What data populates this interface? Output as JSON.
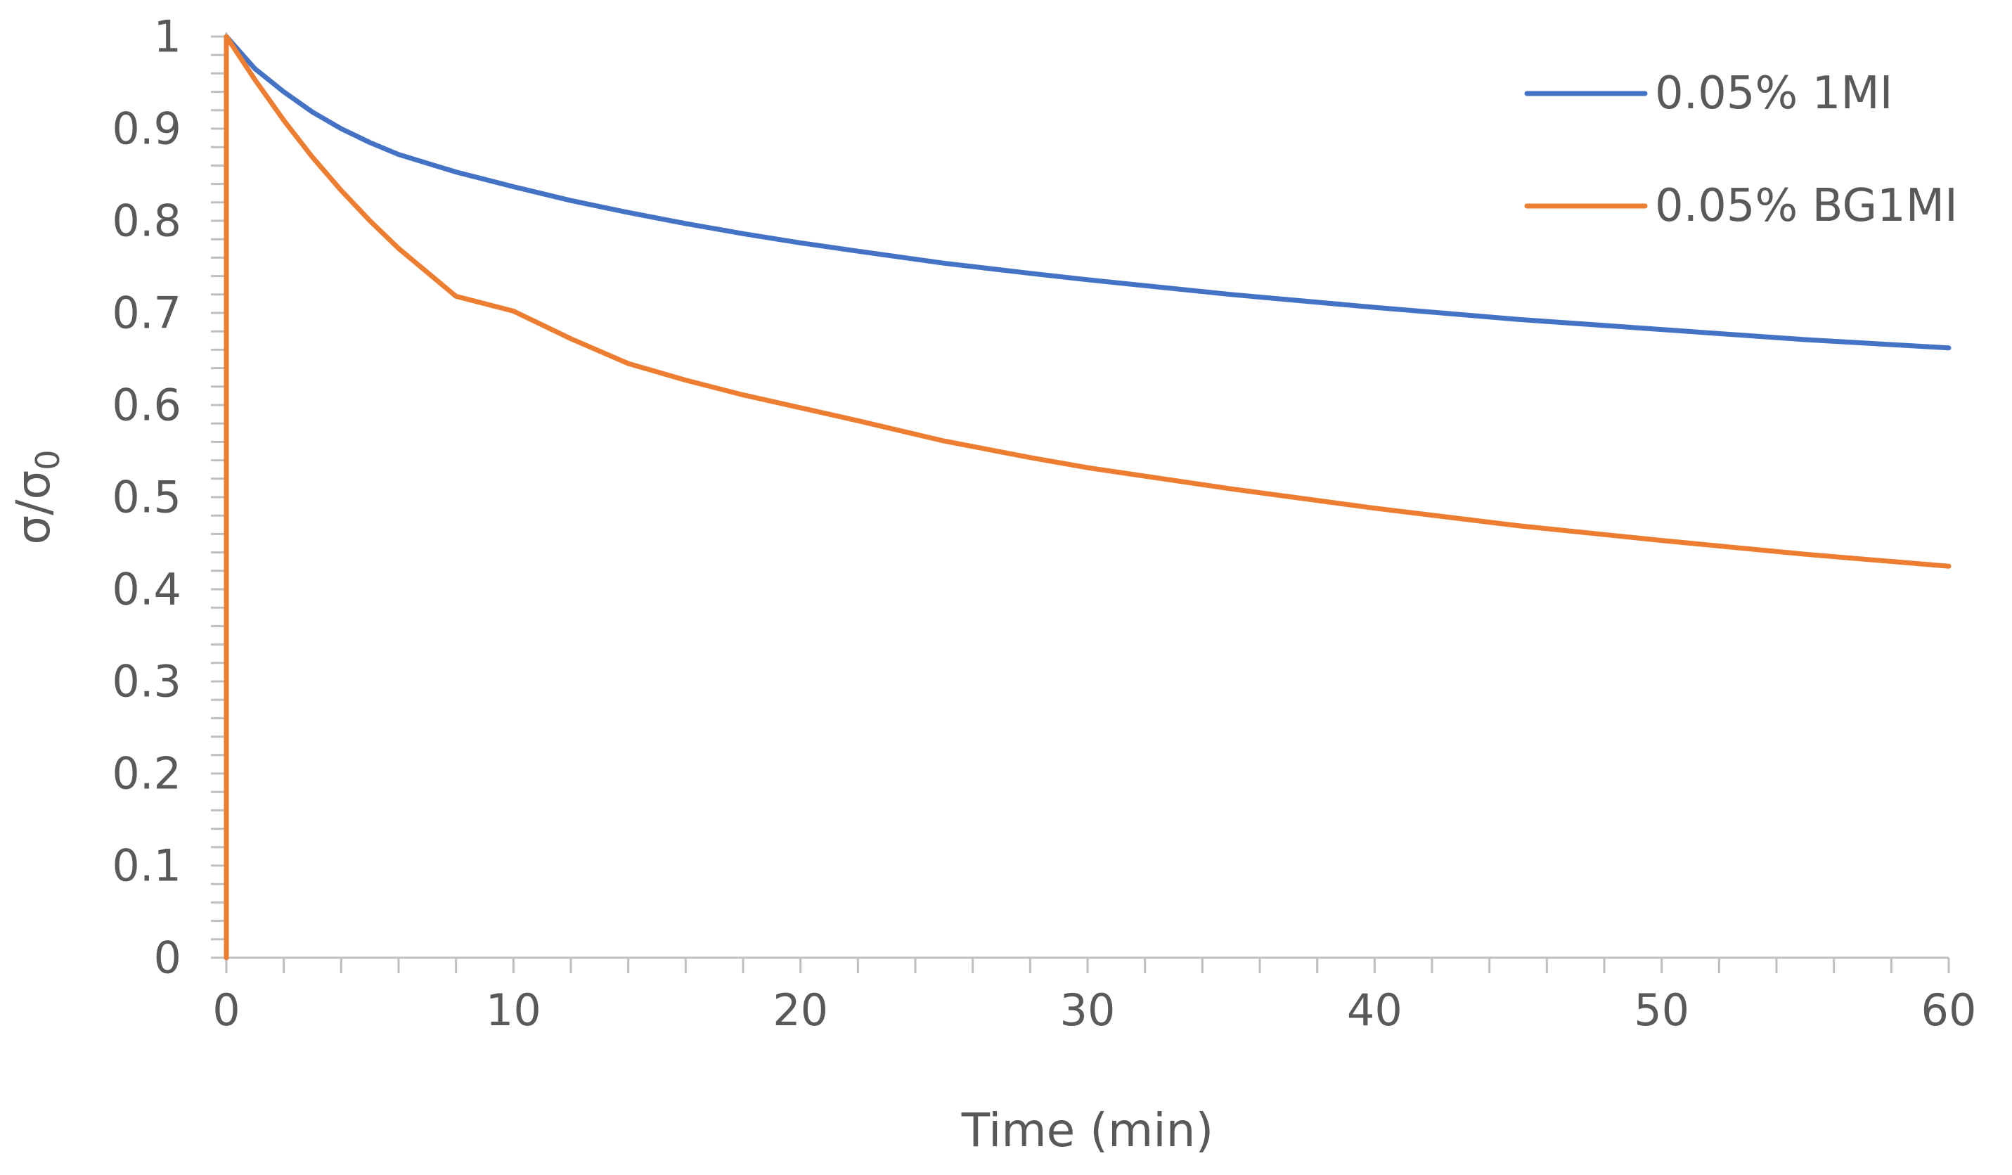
{
  "chart_data": {
    "type": "line",
    "title": "",
    "xlabel": "Time (min)",
    "ylabel": {
      "base": "σ/σ",
      "subscript": "0"
    },
    "xlim": [
      0,
      60
    ],
    "ylim": [
      0,
      1
    ],
    "x_ticks": [
      {
        "value": 0,
        "label": "0"
      },
      {
        "value": 10,
        "label": "10"
      },
      {
        "value": 20,
        "label": "20"
      },
      {
        "value": 30,
        "label": "30"
      },
      {
        "value": 40,
        "label": "40"
      },
      {
        "value": 50,
        "label": "50"
      },
      {
        "value": 60,
        "label": "60"
      }
    ],
    "x_minor_step": 2,
    "y_ticks": [
      {
        "value": 0,
        "label": "0"
      },
      {
        "value": 0.1,
        "label": "0.1"
      },
      {
        "value": 0.2,
        "label": "0.2"
      },
      {
        "value": 0.3,
        "label": "0.3"
      },
      {
        "value": 0.4,
        "label": "0.4"
      },
      {
        "value": 0.5,
        "label": "0.5"
      },
      {
        "value": 0.6,
        "label": "0.6"
      },
      {
        "value": 0.7,
        "label": "0.7"
      },
      {
        "value": 0.8,
        "label": "0.8"
      },
      {
        "value": 0.9,
        "label": "0.9"
      },
      {
        "value": 1,
        "label": "1"
      }
    ],
    "y_minor_step": 0.02,
    "grid": false,
    "legend_position": "top-right",
    "series": [
      {
        "name": "0.05% 1MI",
        "color": "#4472C4",
        "x": [
          0,
          0,
          1,
          2,
          3,
          4,
          5,
          6,
          8,
          10,
          12,
          14,
          16,
          18,
          20,
          22,
          25,
          28,
          30,
          35,
          40,
          45,
          50,
          55,
          60
        ],
        "y": [
          0,
          1,
          0.965,
          0.94,
          0.918,
          0.9,
          0.885,
          0.872,
          0.853,
          0.837,
          0.822,
          0.809,
          0.797,
          0.786,
          0.776,
          0.767,
          0.754,
          0.743,
          0.736,
          0.72,
          0.706,
          0.693,
          0.682,
          0.671,
          0.662
        ]
      },
      {
        "name": "0.05% BG1MI",
        "color": "#ED7D31",
        "x": [
          0,
          0,
          1,
          2,
          3,
          4,
          5,
          6,
          8,
          10,
          12,
          14,
          16,
          18,
          20,
          22,
          25,
          28,
          30,
          35,
          40,
          45,
          50,
          55,
          60
        ],
        "y": [
          0,
          1,
          0.953,
          0.909,
          0.869,
          0.833,
          0.8,
          0.77,
          0.718,
          0.702,
          0.672,
          0.645,
          0.627,
          0.611,
          0.597,
          0.583,
          0.561,
          0.543,
          0.532,
          0.509,
          0.488,
          0.469,
          0.453,
          0.438,
          0.425
        ]
      }
    ]
  }
}
